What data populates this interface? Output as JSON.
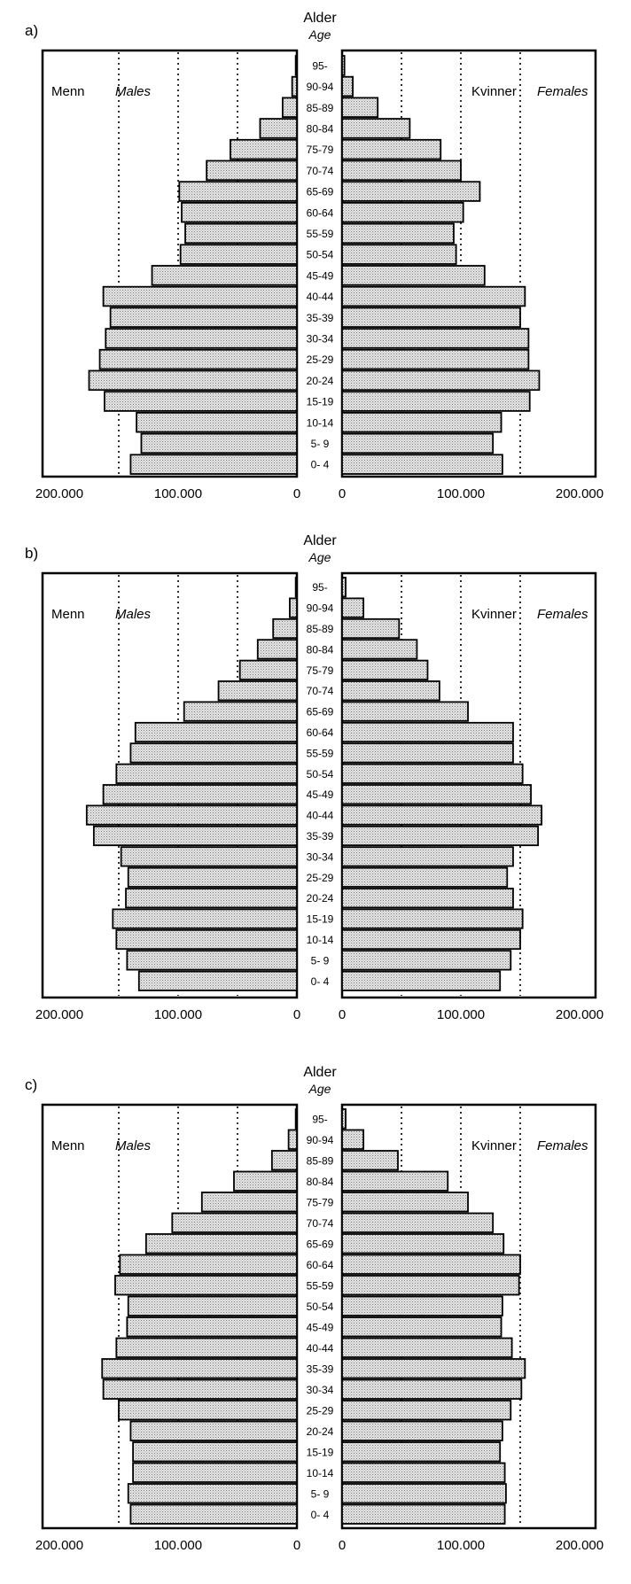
{
  "chart_data": [
    {
      "type": "bar",
      "panel_label": "a)",
      "age_label": "Alder",
      "age_label_en": "Age",
      "left_label": "Menn",
      "left_label_en": "Males",
      "right_label": "Kvinner",
      "right_label_en": "Females",
      "categories": [
        "95-",
        "90-94",
        "85-89",
        "80-84",
        "75-79",
        "70-74",
        "65-69",
        "60-64",
        "55-59",
        "50-54",
        "45-49",
        "40-44",
        "35-39",
        "30-34",
        "25-29",
        "20-24",
        "15-19",
        "10-14",
        "5- 9",
        "0- 4"
      ],
      "series": [
        {
          "name": "Menn",
          "values": [
            1000,
            4000,
            12000,
            31000,
            56000,
            76000,
            99000,
            97000,
            94000,
            98000,
            122000,
            163000,
            157000,
            161000,
            166000,
            175000,
            162000,
            135000,
            131000,
            140000
          ]
        },
        {
          "name": "Kvinner",
          "values": [
            2000,
            9000,
            30000,
            57000,
            83000,
            100000,
            116000,
            102000,
            94000,
            96000,
            120000,
            154000,
            150000,
            157000,
            157000,
            166000,
            158000,
            134000,
            127000,
            135000
          ]
        }
      ],
      "x_ticks_left": [
        "200.000",
        "100.000",
        "0"
      ],
      "x_ticks_right": [
        "0",
        "100.000",
        "200.000"
      ],
      "xlim": [
        0,
        200000
      ],
      "gridlines": [
        50000,
        100000,
        150000
      ]
    },
    {
      "type": "bar",
      "panel_label": "b)",
      "age_label": "Alder",
      "age_label_en": "Age",
      "left_label": "Menn",
      "left_label_en": "Males",
      "right_label": "Kvinner",
      "right_label_en": "Females",
      "categories": [
        "95-",
        "90-94",
        "85-89",
        "80-84",
        "75-79",
        "70-74",
        "65-69",
        "60-64",
        "55-59",
        "50-54",
        "45-49",
        "40-44",
        "35-39",
        "30-34",
        "25-29",
        "20-24",
        "15-19",
        "10-14",
        "5- 9",
        "0- 4"
      ],
      "series": [
        {
          "name": "Menn",
          "values": [
            1000,
            6000,
            20000,
            33000,
            48000,
            66000,
            95000,
            136000,
            140000,
            152000,
            163000,
            177000,
            171000,
            148000,
            142000,
            144000,
            155000,
            152000,
            143000,
            133000
          ]
        },
        {
          "name": "Kvinner",
          "values": [
            3000,
            18000,
            48000,
            63000,
            72000,
            82000,
            106000,
            144000,
            144000,
            152000,
            159000,
            168000,
            165000,
            144000,
            139000,
            144000,
            152000,
            150000,
            142000,
            133000
          ]
        }
      ],
      "x_ticks_left": [
        "200.000",
        "100.000",
        "0"
      ],
      "x_ticks_right": [
        "0",
        "100.000",
        "200.000"
      ],
      "xlim": [
        0,
        200000
      ],
      "gridlines": [
        50000,
        100000,
        150000
      ]
    },
    {
      "type": "bar",
      "panel_label": "c)",
      "age_label": "Alder",
      "age_label_en": "Age",
      "left_label": "Menn",
      "left_label_en": "Males",
      "right_label": "Kvinner",
      "right_label_en": "Females",
      "categories": [
        "95-",
        "90-94",
        "85-89",
        "80-84",
        "75-79",
        "70-74",
        "65-69",
        "60-64",
        "55-59",
        "50-54",
        "45-49",
        "40-44",
        "35-39",
        "30-34",
        "25-29",
        "20-24",
        "15-19",
        "10-14",
        "5- 9",
        "0- 4"
      ],
      "series": [
        {
          "name": "Menn",
          "values": [
            1000,
            7000,
            21000,
            53000,
            80000,
            105000,
            127000,
            149000,
            153000,
            142000,
            143000,
            152000,
            164000,
            163000,
            150000,
            140000,
            138000,
            138000,
            142000,
            140000
          ]
        },
        {
          "name": "Kvinner",
          "values": [
            3000,
            18000,
            47000,
            89000,
            106000,
            127000,
            136000,
            150000,
            149000,
            135000,
            134000,
            143000,
            154000,
            151000,
            142000,
            135000,
            133000,
            137000,
            138000,
            137000
          ]
        }
      ],
      "x_ticks_left": [
        "200.000",
        "100.000",
        "0"
      ],
      "x_ticks_right": [
        "0",
        "100.000",
        "200.000"
      ],
      "xlim": [
        0,
        200000
      ],
      "gridlines": [
        50000,
        100000,
        150000
      ]
    }
  ]
}
